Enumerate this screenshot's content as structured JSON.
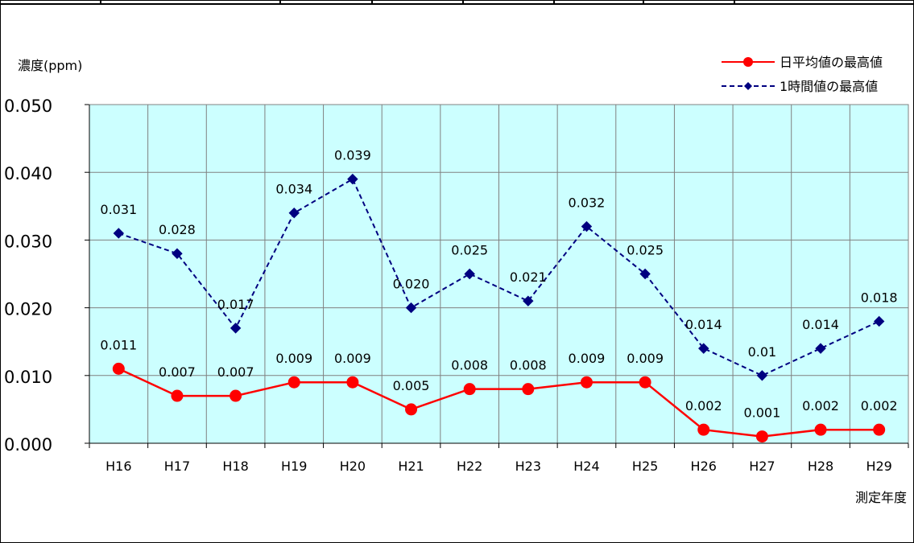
{
  "chart_data": {
    "type": "line",
    "categories": [
      "H16",
      "H17",
      "H18",
      "H19",
      "H20",
      "H21",
      "H22",
      "H23",
      "H24",
      "H25",
      "H26",
      "H27",
      "H28",
      "H29"
    ],
    "series": [
      {
        "name": "日平均値の最高値",
        "color": "#ff0000",
        "marker": "circle",
        "line": "solid",
        "values": [
          0.011,
          0.007,
          0.007,
          0.009,
          0.009,
          0.005,
          0.008,
          0.008,
          0.009,
          0.009,
          0.002,
          0.001,
          0.002,
          0.002
        ],
        "labels": [
          "0.011",
          "0.007",
          "0.007",
          "0.009",
          "0.009",
          "0.005",
          "0.008",
          "0.008",
          "0.009",
          "0.009",
          "0.002",
          "0.001",
          "0.002",
          "0.002"
        ]
      },
      {
        "name": "1時間値の最高値",
        "color": "#000080",
        "marker": "diamond",
        "line": "dashed",
        "values": [
          0.031,
          0.028,
          0.017,
          0.034,
          0.039,
          0.02,
          0.025,
          0.021,
          0.032,
          0.025,
          0.014,
          0.01,
          0.014,
          0.018
        ],
        "labels": [
          "0.031",
          "0.028",
          "0.017",
          "0.034",
          "0.039",
          "0.020",
          "0.025",
          "0.021",
          "0.032",
          "0.025",
          "0.014",
          "0.01",
          "0.014",
          "0.018"
        ]
      }
    ],
    "ylabel": "濃度(ppm)",
    "xlabel": "測定年度",
    "ylim": [
      0,
      0.05
    ],
    "yticks": [
      "0.000",
      "0.010",
      "0.020",
      "0.030",
      "0.040",
      "0.050"
    ],
    "grid": true,
    "legend_position": "top-right",
    "plot_background": "#ccffff"
  }
}
